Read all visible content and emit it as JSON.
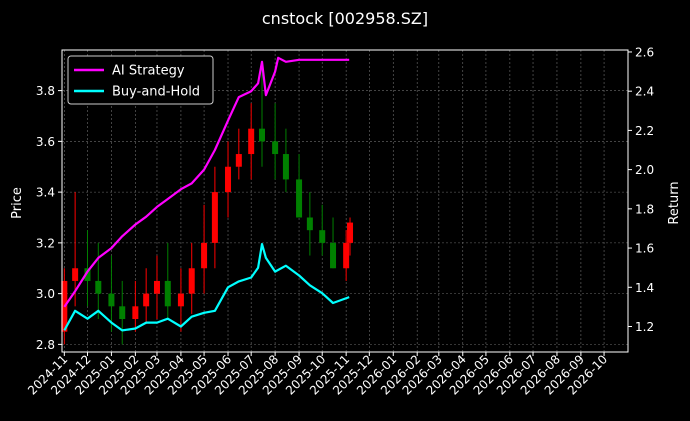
{
  "chart_data": {
    "type": "line",
    "title": "cnstock [002958.SZ]",
    "xlabel": "",
    "ylabel": "Price",
    "y2label": "Return",
    "grid": true,
    "legend_position": "top-left",
    "x_ticks": [
      "2024-11",
      "2024-12",
      "2025-01",
      "2025-02",
      "2025-03",
      "2025-04",
      "2025-05",
      "2025-06",
      "2025-07",
      "2025-08",
      "2025-09",
      "2025-10",
      "2025-11",
      "2025-12",
      "2026-01",
      "2026-02",
      "2026-03",
      "2026-04",
      "2026-05",
      "2026-06",
      "2026-07",
      "2026-08",
      "2026-09",
      "2026-10"
    ],
    "x_range": [
      "2024-10-29",
      "2026-11-01"
    ],
    "y_left": {
      "ticks": [
        2.8,
        3.0,
        3.2,
        3.4,
        3.6,
        3.8
      ],
      "range": [
        2.77,
        3.96
      ]
    },
    "y_right": {
      "ticks": [
        1.2,
        1.4,
        1.6,
        1.8,
        2.0,
        2.2,
        2.4,
        2.6
      ],
      "range": [
        1.07,
        2.61
      ]
    },
    "colors": {
      "ai": "#ff00ff",
      "bh": "#00ffff",
      "up": "#ff0000",
      "down": "#008000",
      "grid": "#6e6e6e"
    },
    "series": [
      {
        "name": "AI Strategy",
        "axis": "right",
        "x": [
          "2024-11-01",
          "2024-11-15",
          "2024-12-01",
          "2024-12-15",
          "2025-01-01",
          "2025-01-15",
          "2025-02-01",
          "2025-02-15",
          "2025-03-01",
          "2025-03-15",
          "2025-04-01",
          "2025-04-15",
          "2025-05-01",
          "2025-05-15",
          "2025-06-01",
          "2025-06-15",
          "2025-07-01",
          "2025-07-10",
          "2025-07-15",
          "2025-07-20",
          "2025-08-01",
          "2025-08-05",
          "2025-08-15",
          "2025-09-01",
          "2025-09-15",
          "2025-10-01",
          "2025-10-15",
          "2025-11-05"
        ],
        "values": [
          1.3,
          1.38,
          1.48,
          1.55,
          1.6,
          1.66,
          1.72,
          1.76,
          1.81,
          1.85,
          1.9,
          1.93,
          2.0,
          2.1,
          2.25,
          2.37,
          2.4,
          2.44,
          2.55,
          2.38,
          2.5,
          2.57,
          2.55,
          2.56,
          2.56,
          2.56,
          2.56,
          2.56
        ]
      },
      {
        "name": "Buy-and-Hold",
        "axis": "right",
        "x": [
          "2024-11-01",
          "2024-11-15",
          "2024-12-01",
          "2024-12-15",
          "2025-01-01",
          "2025-01-15",
          "2025-02-01",
          "2025-02-15",
          "2025-03-01",
          "2025-03-15",
          "2025-04-01",
          "2025-04-15",
          "2025-05-01",
          "2025-05-15",
          "2025-06-01",
          "2025-06-15",
          "2025-07-01",
          "2025-07-10",
          "2025-07-15",
          "2025-07-20",
          "2025-08-01",
          "2025-08-15",
          "2025-09-01",
          "2025-09-15",
          "2025-10-01",
          "2025-10-15",
          "2025-11-05"
        ],
        "values": [
          1.18,
          1.28,
          1.24,
          1.28,
          1.22,
          1.18,
          1.19,
          1.22,
          1.22,
          1.24,
          1.2,
          1.25,
          1.27,
          1.28,
          1.4,
          1.43,
          1.45,
          1.5,
          1.62,
          1.55,
          1.48,
          1.51,
          1.46,
          1.41,
          1.37,
          1.32,
          1.35
        ]
      }
    ],
    "price_candles": {
      "x": [
        "2024-11-01",
        "2024-11-15",
        "2024-12-01",
        "2024-12-15",
        "2025-01-01",
        "2025-01-15",
        "2025-02-01",
        "2025-02-15",
        "2025-03-01",
        "2025-03-15",
        "2025-04-01",
        "2025-04-15",
        "2025-05-01",
        "2025-05-15",
        "2025-06-01",
        "2025-06-15",
        "2025-07-01",
        "2025-07-15",
        "2025-08-01",
        "2025-08-15",
        "2025-09-01",
        "2025-09-15",
        "2025-10-01",
        "2025-10-15",
        "2025-11-01",
        "2025-11-06"
      ],
      "open": [
        2.85,
        3.05,
        3.1,
        3.05,
        3.0,
        2.95,
        2.9,
        2.95,
        3.0,
        3.05,
        2.95,
        3.0,
        3.1,
        3.2,
        3.4,
        3.5,
        3.55,
        3.65,
        3.6,
        3.55,
        3.45,
        3.3,
        3.25,
        3.2,
        3.1,
        3.2
      ],
      "high": [
        3.1,
        3.4,
        3.25,
        3.2,
        3.15,
        3.05,
        3.05,
        3.1,
        3.15,
        3.2,
        3.1,
        3.2,
        3.35,
        3.5,
        3.6,
        3.65,
        3.75,
        3.9,
        3.75,
        3.65,
        3.55,
        3.4,
        3.35,
        3.3,
        3.25,
        3.3
      ],
      "low": [
        2.8,
        2.95,
        2.95,
        2.9,
        2.85,
        2.8,
        2.85,
        2.88,
        2.9,
        2.9,
        2.85,
        2.92,
        3.0,
        3.1,
        3.3,
        3.45,
        3.45,
        3.5,
        3.45,
        3.4,
        3.3,
        3.15,
        3.15,
        3.1,
        3.05,
        3.15
      ],
      "close": [
        3.05,
        3.1,
        3.05,
        3.0,
        2.95,
        2.9,
        2.95,
        3.0,
        3.05,
        2.95,
        3.0,
        3.1,
        3.2,
        3.4,
        3.5,
        3.55,
        3.65,
        3.6,
        3.55,
        3.45,
        3.3,
        3.25,
        3.2,
        3.1,
        3.2,
        3.28
      ]
    }
  }
}
